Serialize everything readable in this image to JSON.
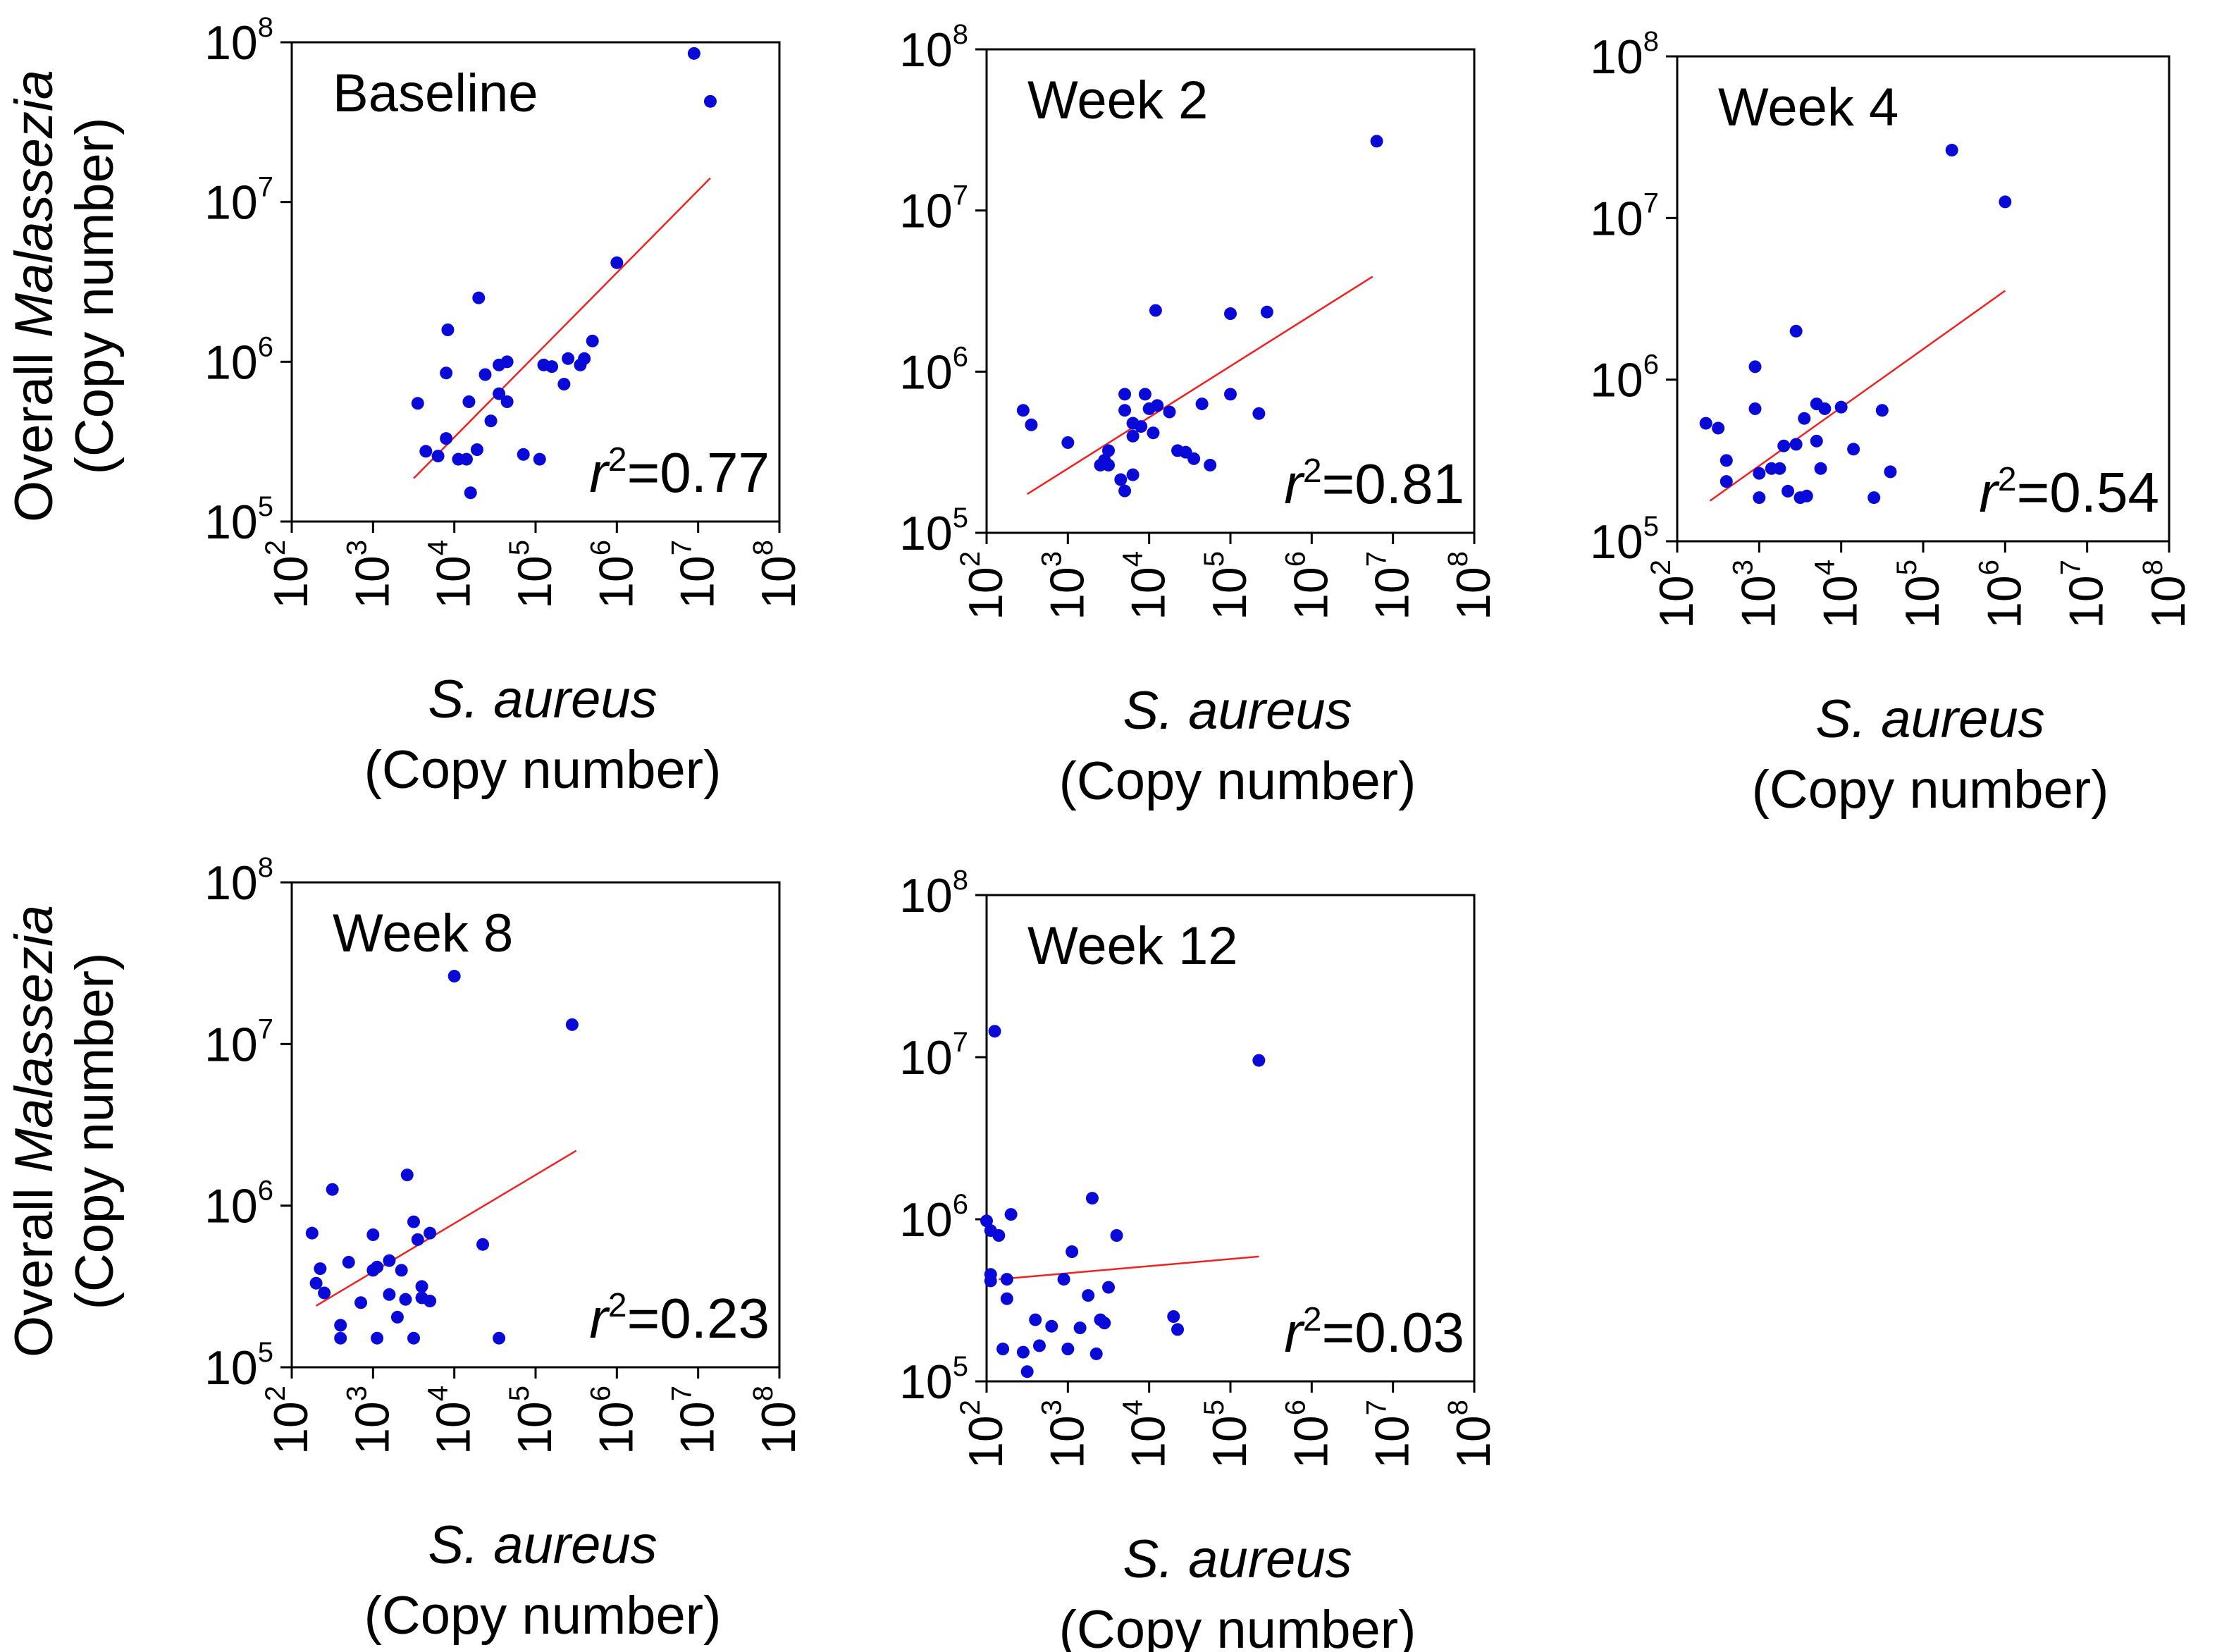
{
  "figure": {
    "ylabel_prefix": "Overall ",
    "ylabel_genus": "Malassezia",
    "ylabel_unit": "(Copy number)",
    "xlabel_species": "S. aureus",
    "xlabel_unit": "(Copy number)"
  },
  "colors": {
    "points": "#0a0ad8",
    "fit_line": "#ee2222",
    "axes": "#000000"
  },
  "chart_data": [
    {
      "type": "scatter",
      "title": "Baseline",
      "r2_symbol": "r",
      "r2_exp": "2",
      "r2_value": "=0.77",
      "x_scale": "log",
      "y_scale": "log",
      "x_range_exp": [
        2,
        8
      ],
      "y_range_exp": [
        5,
        8
      ],
      "x_ticks": [
        2,
        3,
        4,
        5,
        6,
        7,
        8
      ],
      "y_ticks": [
        5,
        6,
        7,
        8
      ],
      "tick_base": "10",
      "points_log10": [
        [
          3.55,
          5.74
        ],
        [
          3.65,
          5.44
        ],
        [
          3.8,
          5.41
        ],
        [
          3.9,
          5.52
        ],
        [
          3.9,
          5.93
        ],
        [
          3.92,
          6.2
        ],
        [
          4.05,
          5.39
        ],
        [
          4.15,
          5.39
        ],
        [
          4.2,
          5.18
        ],
        [
          4.18,
          5.75
        ],
        [
          4.28,
          5.45
        ],
        [
          4.3,
          6.4
        ],
        [
          4.38,
          5.92
        ],
        [
          4.45,
          5.63
        ],
        [
          4.55,
          5.98
        ],
        [
          4.55,
          5.8
        ],
        [
          4.65,
          6.0
        ],
        [
          4.65,
          5.75
        ],
        [
          4.85,
          5.42
        ],
        [
          5.05,
          5.39
        ],
        [
          5.1,
          5.98
        ],
        [
          5.2,
          5.97
        ],
        [
          5.35,
          5.86
        ],
        [
          5.4,
          6.02
        ],
        [
          5.55,
          5.98
        ],
        [
          5.6,
          6.02
        ],
        [
          5.7,
          6.13
        ],
        [
          6.0,
          6.62
        ],
        [
          6.95,
          7.93
        ],
        [
          7.15,
          7.63
        ]
      ],
      "fit_log10": [
        [
          3.5,
          5.27
        ],
        [
          7.15,
          7.15
        ]
      ]
    },
    {
      "type": "scatter",
      "title": "Week 2",
      "r2_symbol": "r",
      "r2_exp": "2",
      "r2_value": "=0.81",
      "x_scale": "log",
      "y_scale": "log",
      "x_range_exp": [
        2,
        8
      ],
      "y_range_exp": [
        5,
        8
      ],
      "x_ticks": [
        2,
        3,
        4,
        5,
        6,
        7,
        8
      ],
      "y_ticks": [
        5,
        6,
        7,
        8
      ],
      "tick_base": "10",
      "points_log10": [
        [
          2.45,
          5.76
        ],
        [
          2.55,
          5.67
        ],
        [
          3.0,
          5.56
        ],
        [
          3.4,
          5.42
        ],
        [
          3.45,
          5.45
        ],
        [
          3.5,
          5.51
        ],
        [
          3.5,
          5.42
        ],
        [
          3.65,
          5.33
        ],
        [
          3.7,
          5.86
        ],
        [
          3.7,
          5.76
        ],
        [
          3.7,
          5.26
        ],
        [
          3.8,
          5.36
        ],
        [
          3.8,
          5.68
        ],
        [
          3.8,
          5.6
        ],
        [
          3.9,
          5.66
        ],
        [
          3.95,
          5.86
        ],
        [
          4.0,
          5.77
        ],
        [
          4.05,
          5.62
        ],
        [
          4.08,
          6.38
        ],
        [
          4.1,
          5.79
        ],
        [
          4.25,
          5.75
        ],
        [
          4.35,
          5.51
        ],
        [
          4.45,
          5.5
        ],
        [
          4.55,
          5.46
        ],
        [
          4.65,
          5.8
        ],
        [
          4.75,
          5.42
        ],
        [
          5.0,
          5.86
        ],
        [
          5.0,
          6.36
        ],
        [
          5.35,
          5.74
        ],
        [
          5.45,
          6.37
        ],
        [
          6.8,
          7.43
        ]
      ],
      "fit_log10": [
        [
          2.5,
          5.24
        ],
        [
          6.75,
          6.59
        ]
      ]
    },
    {
      "type": "scatter",
      "title": "Week 4",
      "r2_symbol": "r",
      "r2_exp": "2",
      "r2_value": "=0.54",
      "x_scale": "log",
      "y_scale": "log",
      "x_range_exp": [
        2,
        8
      ],
      "y_range_exp": [
        5,
        8
      ],
      "x_ticks": [
        2,
        3,
        4,
        5,
        6,
        7,
        8
      ],
      "y_ticks": [
        5,
        6,
        7,
        8
      ],
      "tick_base": "10",
      "points_log10": [
        [
          2.35,
          5.73
        ],
        [
          2.5,
          5.7
        ],
        [
          2.6,
          5.5
        ],
        [
          2.6,
          5.37
        ],
        [
          2.95,
          6.08
        ],
        [
          2.95,
          5.82
        ],
        [
          3.0,
          5.42
        ],
        [
          3.0,
          5.27
        ],
        [
          3.15,
          5.45
        ],
        [
          3.25,
          5.45
        ],
        [
          3.3,
          5.59
        ],
        [
          3.35,
          5.31
        ],
        [
          3.45,
          5.6
        ],
        [
          3.5,
          5.27
        ],
        [
          3.55,
          5.76
        ],
        [
          3.58,
          5.28
        ],
        [
          3.7,
          5.62
        ],
        [
          3.7,
          5.85
        ],
        [
          3.75,
          5.45
        ],
        [
          3.8,
          5.82
        ],
        [
          3.45,
          6.3
        ],
        [
          4.0,
          5.83
        ],
        [
          4.15,
          5.57
        ],
        [
          4.4,
          5.27
        ],
        [
          4.5,
          5.81
        ],
        [
          4.6,
          5.43
        ],
        [
          5.35,
          7.42
        ],
        [
          6.0,
          7.1
        ]
      ],
      "fit_log10": [
        [
          2.4,
          5.25
        ],
        [
          6.0,
          6.55
        ]
      ]
    },
    {
      "type": "scatter",
      "title": "Week 8",
      "r2_symbol": "r",
      "r2_exp": "2",
      "r2_value": "=0.23",
      "x_scale": "log",
      "y_scale": "log",
      "x_range_exp": [
        2,
        8
      ],
      "y_range_exp": [
        5,
        8
      ],
      "x_ticks": [
        2,
        3,
        4,
        5,
        6,
        7,
        8
      ],
      "y_ticks": [
        5,
        6,
        7,
        8
      ],
      "tick_base": "10",
      "points_log10": [
        [
          2.25,
          5.83
        ],
        [
          2.3,
          5.52
        ],
        [
          2.35,
          5.61
        ],
        [
          2.4,
          5.46
        ],
        [
          2.5,
          6.1
        ],
        [
          2.6,
          5.26
        ],
        [
          2.6,
          5.18
        ],
        [
          2.7,
          5.65
        ],
        [
          2.85,
          5.4
        ],
        [
          3.0,
          5.82
        ],
        [
          3.0,
          5.6
        ],
        [
          3.05,
          5.18
        ],
        [
          3.05,
          5.62
        ],
        [
          3.2,
          5.66
        ],
        [
          3.2,
          5.45
        ],
        [
          3.3,
          5.31
        ],
        [
          3.35,
          5.6
        ],
        [
          3.4,
          5.42
        ],
        [
          3.42,
          6.19
        ],
        [
          3.5,
          5.18
        ],
        [
          3.5,
          5.9
        ],
        [
          3.55,
          5.79
        ],
        [
          3.6,
          5.5
        ],
        [
          3.6,
          5.43
        ],
        [
          3.7,
          5.83
        ],
        [
          3.7,
          5.41
        ],
        [
          4.0,
          7.42
        ],
        [
          4.35,
          5.76
        ],
        [
          4.55,
          5.18
        ],
        [
          5.45,
          7.12
        ]
      ],
      "fit_log10": [
        [
          2.3,
          5.38
        ],
        [
          5.5,
          6.34
        ]
      ]
    },
    {
      "type": "scatter",
      "title": "Week 12",
      "r2_symbol": "r",
      "r2_exp": "2",
      "r2_value": "=0.03",
      "x_scale": "log",
      "y_scale": "log",
      "x_range_exp": [
        2,
        8
      ],
      "y_range_exp": [
        5,
        8
      ],
      "x_ticks": [
        2,
        3,
        4,
        5,
        6,
        7,
        8
      ],
      "y_ticks": [
        5,
        6,
        7,
        8
      ],
      "tick_base": "10",
      "points_log10": [
        [
          2.0,
          5.99
        ],
        [
          2.05,
          5.93
        ],
        [
          2.05,
          5.66
        ],
        [
          2.05,
          5.62
        ],
        [
          2.1,
          7.16
        ],
        [
          2.15,
          5.9
        ],
        [
          2.2,
          5.2
        ],
        [
          2.25,
          5.51
        ],
        [
          2.25,
          5.63
        ],
        [
          2.3,
          6.03
        ],
        [
          2.45,
          5.18
        ],
        [
          2.5,
          5.06
        ],
        [
          2.6,
          5.38
        ],
        [
          2.65,
          5.22
        ],
        [
          2.8,
          5.34
        ],
        [
          2.95,
          5.63
        ],
        [
          3.0,
          5.2
        ],
        [
          3.05,
          5.8
        ],
        [
          3.15,
          5.33
        ],
        [
          3.25,
          5.53
        ],
        [
          3.3,
          6.13
        ],
        [
          3.35,
          5.17
        ],
        [
          3.4,
          5.38
        ],
        [
          3.45,
          5.36
        ],
        [
          3.5,
          5.58
        ],
        [
          3.6,
          5.9
        ],
        [
          4.3,
          5.4
        ],
        [
          4.35,
          5.32
        ],
        [
          5.35,
          6.98
        ]
      ],
      "fit_log10": [
        [
          2.15,
          5.63
        ],
        [
          5.35,
          5.77
        ]
      ]
    }
  ]
}
